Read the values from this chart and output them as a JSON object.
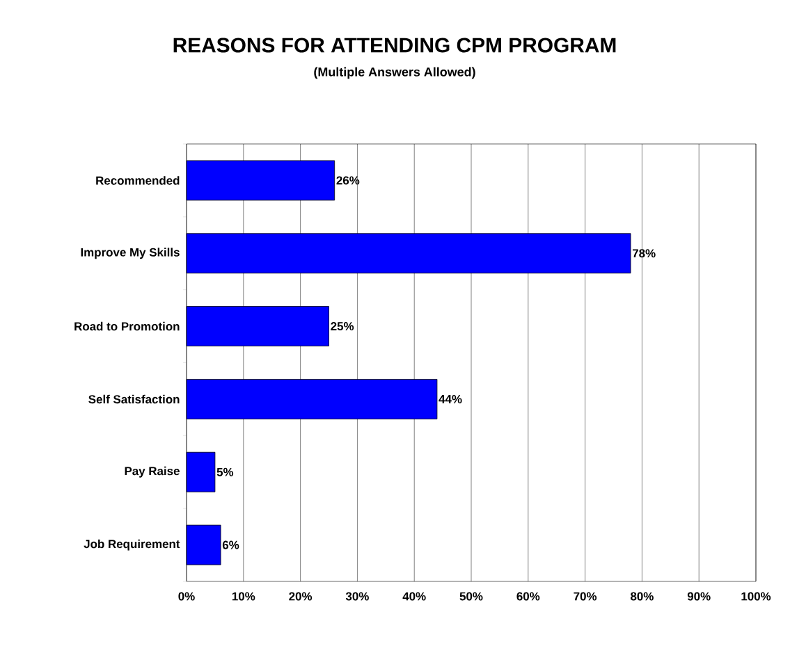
{
  "chart_data": {
    "type": "bar",
    "orientation": "horizontal",
    "title": "REASONS FOR ATTENDING CPM PROGRAM",
    "subtitle": "(Multiple Answers Allowed)",
    "categories": [
      "Recommended",
      "Improve My Skills",
      "Road to Promotion",
      "Self Satisfaction",
      "Pay Raise",
      "Job Requirement"
    ],
    "values": [
      26,
      78,
      25,
      44,
      5,
      6
    ],
    "value_labels": [
      "26%",
      "78%",
      "25%",
      "44%",
      "5%",
      "6%"
    ],
    "color": "#0000ff",
    "xlim": [
      0,
      100
    ],
    "xticks": [
      {
        "value": 0,
        "label": "0%"
      },
      {
        "value": 10,
        "label": "10%"
      },
      {
        "value": 20,
        "label": "20%"
      },
      {
        "value": 30,
        "label": "30%"
      },
      {
        "value": 40,
        "label": "40%"
      },
      {
        "value": 50,
        "label": "50%"
      },
      {
        "value": 60,
        "label": "60%"
      },
      {
        "value": 70,
        "label": "70%"
      },
      {
        "value": 80,
        "label": "80%"
      },
      {
        "value": 90,
        "label": "90%"
      },
      {
        "value": 100,
        "label": "100%"
      }
    ],
    "grid": "x"
  }
}
